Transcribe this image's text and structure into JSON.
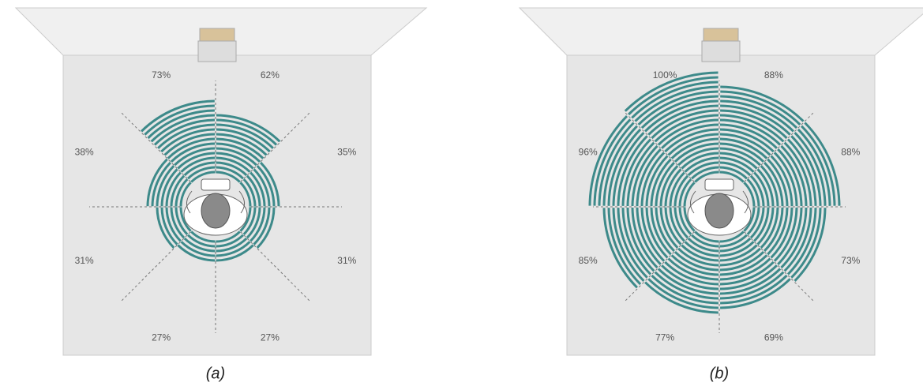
{
  "chart_data": [
    {
      "type": "radial-sectors",
      "caption": "(a)",
      "color": "#3d8a8a",
      "values": [
        62,
        35,
        31,
        27,
        27,
        31,
        38,
        73
      ],
      "value_labels": [
        "62%",
        "35%",
        "31%",
        "27%",
        "27%",
        "31%",
        "38%",
        "73%"
      ]
    },
    {
      "type": "radial-sectors",
      "caption": "(b)",
      "color": "#3d8a8a",
      "values": [
        88,
        88,
        73,
        69,
        77,
        85,
        96,
        100
      ],
      "value_labels": [
        "88%",
        "88%",
        "73%",
        "69%",
        "77%",
        "85%",
        "96%",
        "100%"
      ]
    }
  ]
}
